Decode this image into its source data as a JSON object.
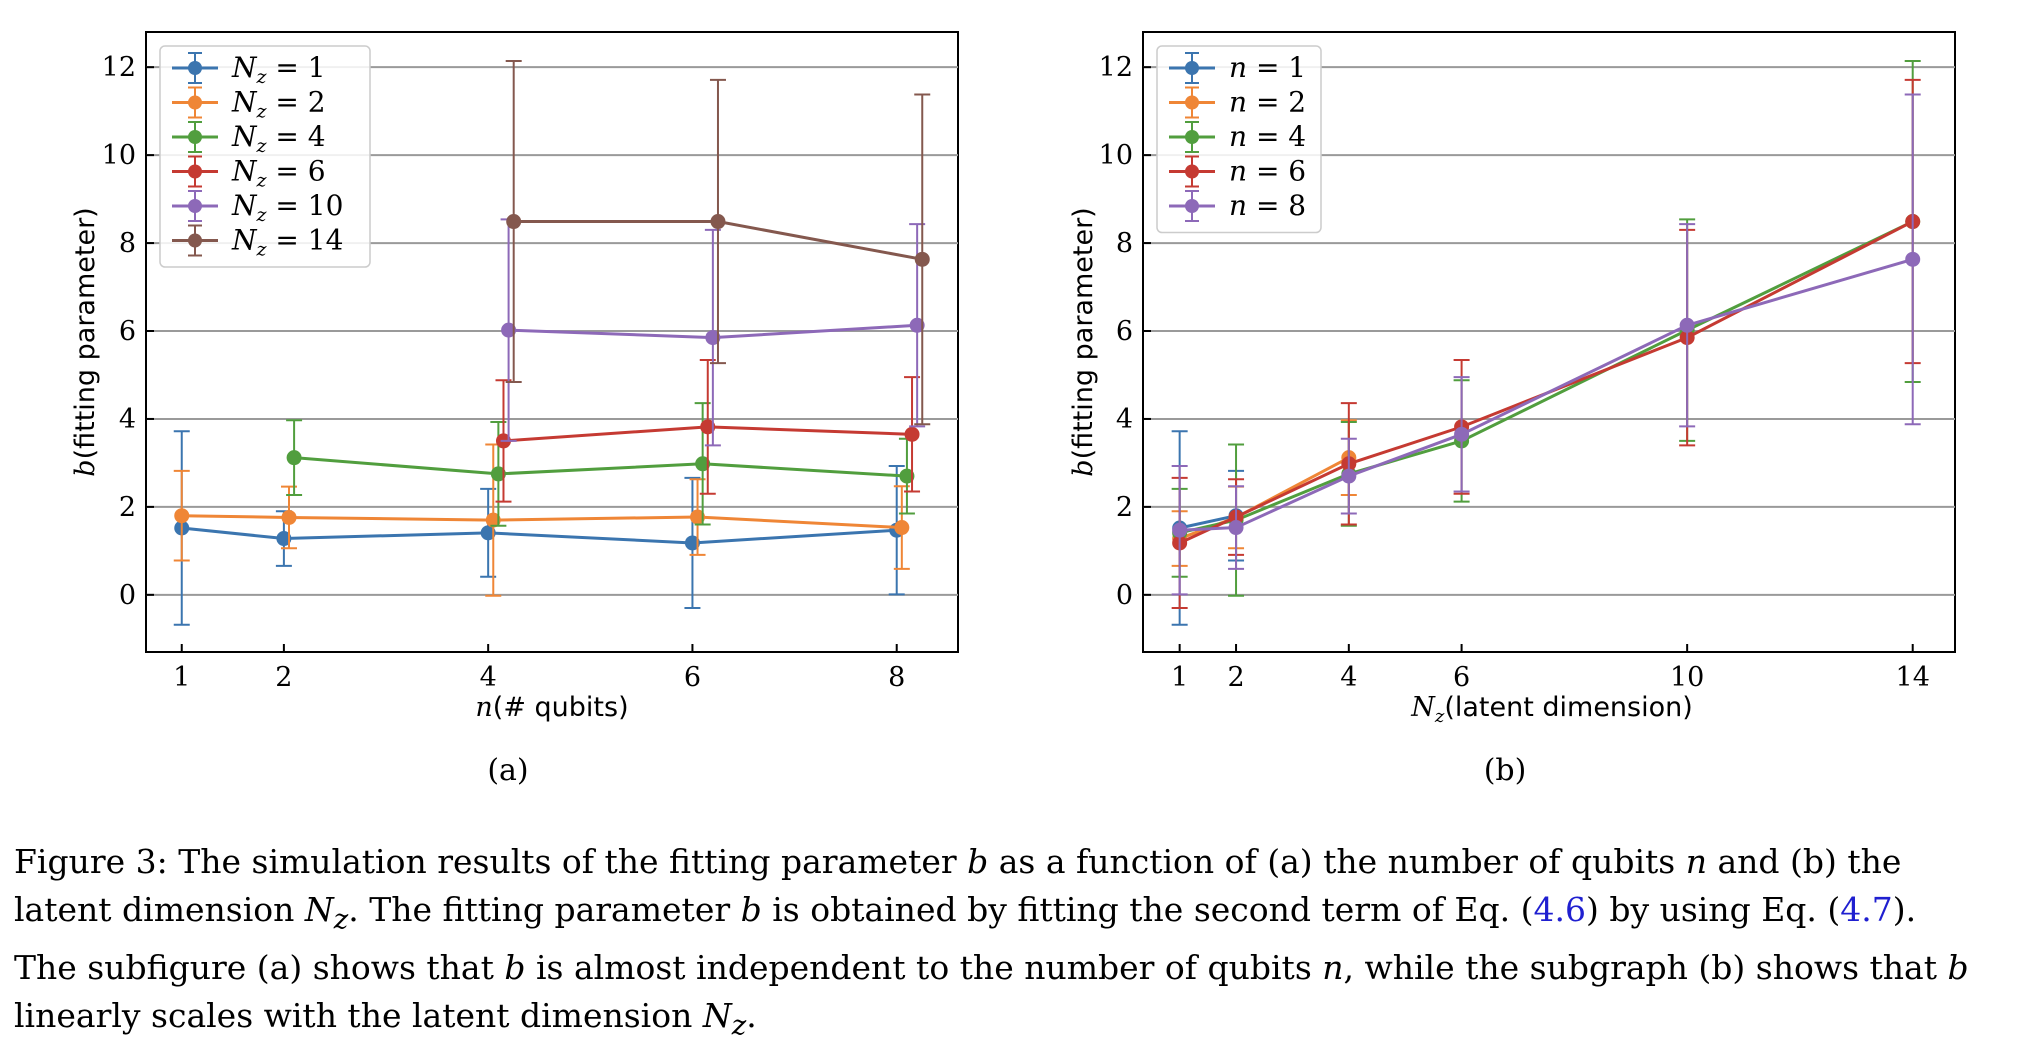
{
  "figure": {
    "label_a": "(a)",
    "label_b": "(b)"
  },
  "caption": {
    "line1_a": "Figure 3:   The simulation results of the fitting parameter ",
    "line1_b": "b",
    "line1_c": " as a function of (a) the number of qubits ",
    "line1_d": "n",
    "line1_e": " and (b) the",
    "line2_a": "latent dimension ",
    "line2_b": "N",
    "line2_c": "z",
    "line2_d": ".  The fitting parameter ",
    "line2_e": "b",
    "line2_f": " is obtained by fitting the second term of Eq. (",
    "line2_ref1": "4.6",
    "line2_g": ") by using Eq. (",
    "line2_ref2": "4.7",
    "line2_h": ").",
    "line3_a": "The subfigure (a) shows that ",
    "line3_b": "b",
    "line3_c": " is almost independent to the number of qubits ",
    "line3_d": "n",
    "line3_e": ", while the subgraph (b) shows that ",
    "line3_f": "b",
    "line4_a": "linearly scales with the latent dimension ",
    "line4_b": "N",
    "line4_c": "z",
    "line4_d": "."
  },
  "colors": {
    "blue": "#3b75af",
    "orange": "#ef8636",
    "green": "#519e3e",
    "red": "#c53a32",
    "purple": "#8d69b8",
    "brown": "#84584e"
  },
  "chart_data": [
    {
      "type": "line",
      "panel": "(a)",
      "xlabel": "n(# qubits)",
      "ylabel": "b(fitting parameter)",
      "xlim": [
        0.65,
        8.6
      ],
      "ylim": [
        -1.3,
        12.8
      ],
      "xticks": [
        1,
        2,
        4,
        6,
        8
      ],
      "yticks": [
        0,
        2,
        4,
        6,
        8,
        10,
        12
      ],
      "grid": "horizontal",
      "legend_position": "top-left",
      "series": [
        {
          "name": "Nz = 1",
          "legend_main": "N",
          "legend_sub": "z",
          "legend_rest": " = 1",
          "color": "#3b75af",
          "offset": 0.0,
          "x": [
            1,
            2,
            4,
            6,
            8
          ],
          "y": [
            1.52,
            1.28,
            1.41,
            1.18,
            1.47
          ],
          "err": [
            2.2,
            0.62,
            1.0,
            1.48,
            1.46
          ]
        },
        {
          "name": "Nz = 2",
          "legend_main": "N",
          "legend_sub": "z",
          "legend_rest": " = 2",
          "color": "#ef8636",
          "offset": 0.05,
          "x": [
            1,
            2,
            4,
            6,
            8
          ],
          "y": [
            1.8,
            1.76,
            1.7,
            1.77,
            1.53
          ],
          "err": [
            1.02,
            0.7,
            1.72,
            0.86,
            0.94
          ]
        },
        {
          "name": "Nz = 4",
          "legend_main": "N",
          "legend_sub": "z",
          "legend_rest": " = 4",
          "color": "#519e3e",
          "offset": 0.1,
          "x": [
            2,
            4,
            6,
            8
          ],
          "y": [
            3.12,
            2.75,
            2.98,
            2.7
          ],
          "err": [
            0.85,
            1.18,
            1.38,
            0.85
          ]
        },
        {
          "name": "Nz = 6",
          "legend_main": "N",
          "legend_sub": "z",
          "legend_rest": " = 6",
          "color": "#c53a32",
          "offset": 0.15,
          "x": [
            4,
            6,
            8
          ],
          "y": [
            3.5,
            3.82,
            3.65
          ],
          "err": [
            1.38,
            1.52,
            1.3
          ]
        },
        {
          "name": "Nz = 10",
          "legend_main": "N",
          "legend_sub": "z",
          "legend_rest": " = 10",
          "color": "#8d69b8",
          "offset": 0.2,
          "x": [
            4,
            6,
            8
          ],
          "y": [
            6.02,
            5.85,
            6.13
          ],
          "err": [
            2.52,
            2.45,
            2.3
          ]
        },
        {
          "name": "Nz = 14",
          "legend_main": "N",
          "legend_sub": "z",
          "legend_rest": " = 14",
          "color": "#84584e",
          "offset": 0.25,
          "x": [
            4,
            6,
            8
          ],
          "y": [
            8.49,
            8.49,
            7.63
          ],
          "err": [
            3.65,
            3.22,
            3.75
          ]
        }
      ]
    },
    {
      "type": "line",
      "panel": "(b)",
      "xlabel": "Nz(latent dimension)",
      "ylabel": "b(fitting parameter)",
      "xlim": [
        0.35,
        14.75
      ],
      "ylim": [
        -1.3,
        12.8
      ],
      "xticks": [
        1,
        2,
        4,
        6,
        10,
        14
      ],
      "yticks": [
        0,
        2,
        4,
        6,
        8,
        10,
        12
      ],
      "grid": "horizontal",
      "legend_position": "top-left",
      "series": [
        {
          "name": "n = 1",
          "legend_main": "n",
          "legend_sub": "",
          "legend_rest": " = 1",
          "color": "#3b75af",
          "offset": 0.0,
          "x": [
            1,
            2
          ],
          "y": [
            1.52,
            1.8
          ],
          "err": [
            2.2,
            1.02
          ]
        },
        {
          "name": "n = 2",
          "legend_main": "n",
          "legend_sub": "",
          "legend_rest": " = 2",
          "color": "#ef8636",
          "offset": 0.0,
          "x": [
            1,
            2,
            4
          ],
          "y": [
            1.28,
            1.76,
            3.12
          ],
          "err": [
            0.62,
            0.7,
            0.85
          ]
        },
        {
          "name": "n = 4",
          "legend_main": "n",
          "legend_sub": "",
          "legend_rest": " = 4",
          "color": "#519e3e",
          "offset": 0.0,
          "x": [
            1,
            2,
            4,
            6,
            10,
            14
          ],
          "y": [
            1.41,
            1.7,
            2.75,
            3.5,
            6.02,
            8.49
          ],
          "err": [
            1.0,
            1.72,
            1.18,
            1.38,
            2.52,
            3.65
          ]
        },
        {
          "name": "n = 6",
          "legend_main": "n",
          "legend_sub": "",
          "legend_rest": " = 6",
          "color": "#c53a32",
          "offset": 0.0,
          "x": [
            1,
            2,
            4,
            6,
            10,
            14
          ],
          "y": [
            1.18,
            1.77,
            2.98,
            3.82,
            5.85,
            8.49
          ],
          "err": [
            1.48,
            0.86,
            1.38,
            1.52,
            2.45,
            3.22
          ]
        },
        {
          "name": "n = 8",
          "legend_main": "n",
          "legend_sub": "",
          "legend_rest": " = 8",
          "color": "#8d69b8",
          "offset": 0.0,
          "x": [
            1,
            2,
            4,
            6,
            10,
            14
          ],
          "y": [
            1.47,
            1.53,
            2.7,
            3.65,
            6.13,
            7.63
          ],
          "err": [
            1.46,
            0.94,
            0.85,
            1.3,
            2.3,
            3.75
          ]
        }
      ]
    }
  ]
}
